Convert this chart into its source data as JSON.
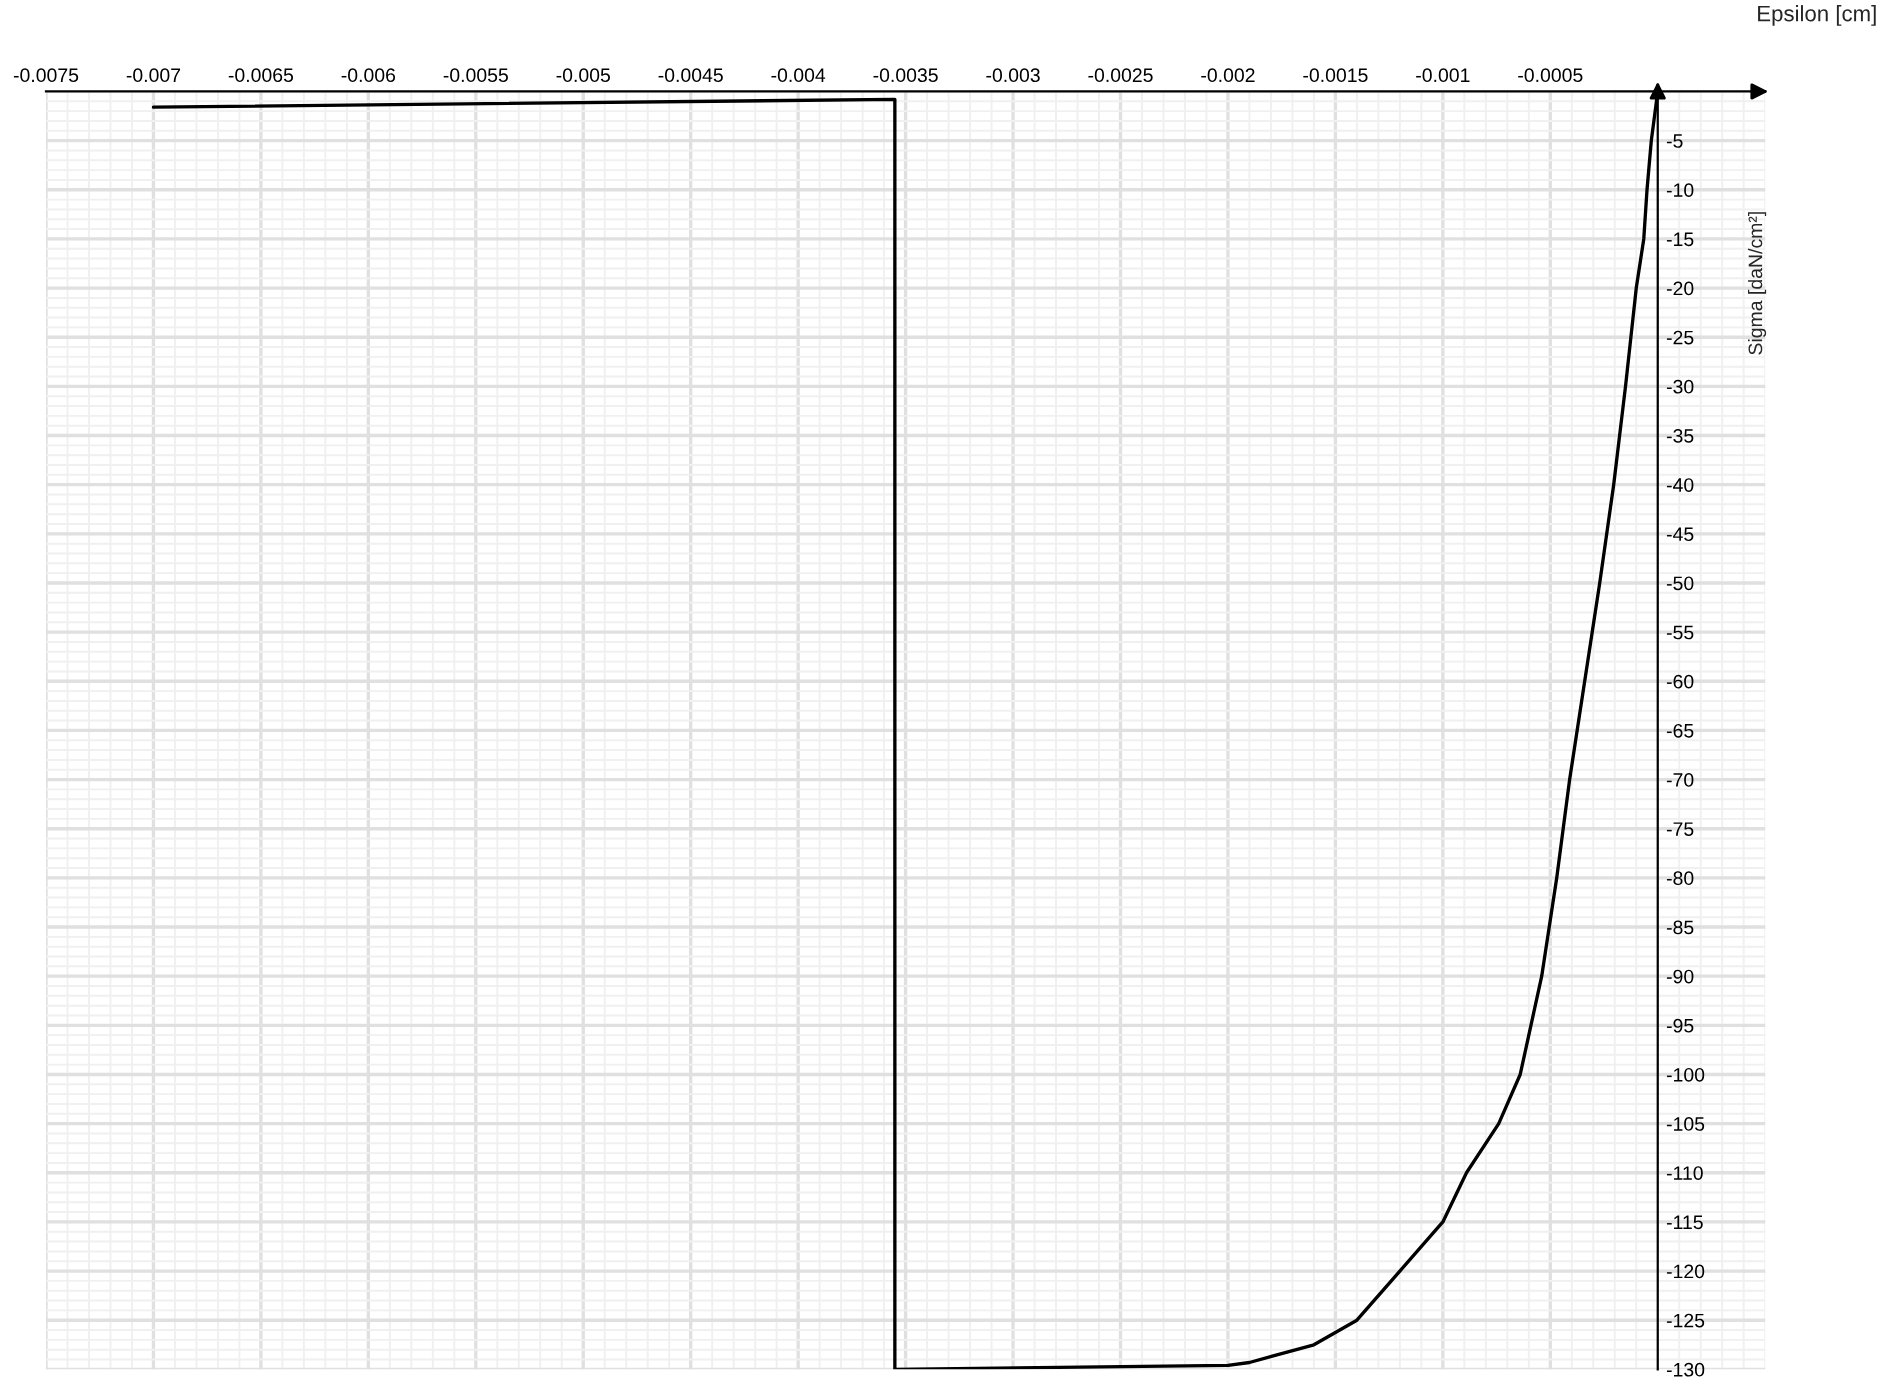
{
  "chart_data": {
    "type": "line",
    "xlabel": "Epsilon [cm]",
    "ylabel": "Sigma [daN/cm²]",
    "series": [
      {
        "color": "#000000",
        "x": [
          -0.007,
          -0.00355,
          -0.00355,
          -0.002,
          -0.0019,
          -0.0016,
          -0.0014,
          -0.0012,
          -0.001,
          -0.00089,
          -0.00074,
          -0.00064,
          -0.00054,
          -0.00047,
          -0.00041,
          -0.00034,
          -0.00027,
          -0.000205,
          -0.00015,
          -0.0001,
          -6.5e-05,
          -5e-05,
          -3e-05,
          0
        ],
        "values": [
          -1.6,
          -0.8,
          -130,
          -129.6,
          -129.3,
          -127.5,
          -125,
          -120,
          -115,
          -110,
          -105,
          -100,
          -90,
          -80,
          -70,
          -60,
          -50,
          -40,
          -30,
          -20,
          -15,
          -10,
          -5,
          0
        ]
      }
    ],
    "xlim": [
      -0.0075,
      0.0005
    ],
    "ylim": [
      -130,
      0
    ],
    "xticks": [
      -0.0075,
      -0.007,
      -0.0065,
      -0.006,
      -0.0055,
      -0.005,
      -0.0045,
      -0.004,
      -0.0035,
      -0.003,
      -0.0025,
      -0.002,
      -0.0015,
      -0.001,
      -0.0005
    ],
    "yticks": [
      -5,
      -10,
      -15,
      -20,
      -25,
      -30,
      -35,
      -40,
      -45,
      -50,
      -55,
      -60,
      -65,
      -70,
      -75,
      -80,
      -85,
      -90,
      -95,
      -100,
      -105,
      -110,
      -115,
      -120,
      -125,
      -130
    ],
    "grid": true,
    "marker": "none",
    "line_style": "solid"
  }
}
